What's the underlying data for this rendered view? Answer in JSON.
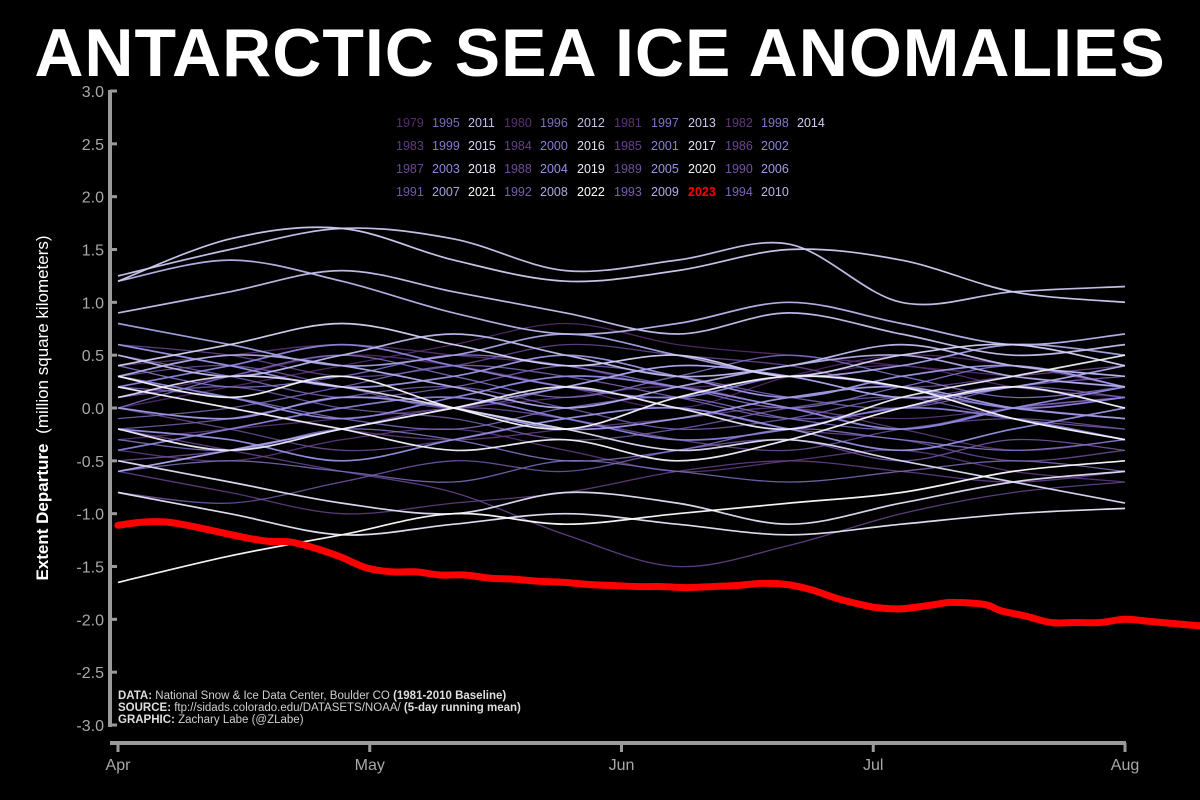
{
  "title": "ANTARCTIC SEA ICE ANOMALIES",
  "credits": {
    "data_label": "DATA:",
    "data_text": "National Snow & Ice Data Center, Boulder CO",
    "data_bold": "(1981-2010 Baseline)",
    "source_label": "SOURCE:",
    "source_text": "ftp://sidads.colorado.edu/DATASETS/NOAA/",
    "source_bold": "(5-day running mean)",
    "graphic_label": "GRAPHIC:",
    "graphic_text": "Zachary Labe (@ZLabe)"
  },
  "colors": {
    "background": "#000000",
    "axis": "#9a9a9a",
    "highlight": "#ff0000",
    "old_years": "#5a2a6e",
    "mid_years": "#8e87e0",
    "recent_years": "#ffffff"
  },
  "chart_data": {
    "type": "line",
    "title": "ANTARCTIC SEA ICE ANOMALIES",
    "ylabel_bold": "Extent Departure",
    "ylabel_rest": "(million square kilometers)",
    "xlabel": "",
    "x_ticks": [
      "Apr",
      "May",
      "Jun",
      "Jul",
      "Aug"
    ],
    "y_ticks": [
      "3.0",
      "2.5",
      "2.0",
      "1.5",
      "1.0",
      "0.5",
      "0.0",
      "-0.5",
      "-1.0",
      "-1.5",
      "-2.0",
      "-2.5",
      "-3.0"
    ],
    "ylim": [
      -3.0,
      3.0
    ],
    "x_range_days": [
      0,
      122
    ],
    "grid": false,
    "legend_position": "top-center",
    "legend_years": [
      "1979",
      "1983",
      "1987",
      "1991",
      "1995",
      "1999",
      "2003",
      "2007",
      "2011",
      "2015",
      "2018",
      "2021",
      "1980",
      "1984",
      "1988",
      "1992",
      "1996",
      "2000",
      "2004",
      "2008",
      "2012",
      "2016",
      "2019",
      "2022",
      "1981",
      "1985",
      "1989",
      "1993",
      "1997",
      "2001",
      "2005",
      "2009",
      "2013",
      "2017",
      "2020",
      "2023",
      "1982",
      "1986",
      "1990",
      "1994",
      "1998",
      "2002",
      "2006",
      "2010",
      "2014"
    ],
    "highlight_year": "2023",
    "highlight_label": "2023",
    "highlight_series": {
      "name": "2023",
      "x": [
        0,
        3,
        6,
        9,
        12,
        15,
        18,
        21,
        24,
        27,
        30,
        33,
        36,
        39,
        42,
        45,
        48,
        51,
        54,
        57,
        60,
        63,
        66,
        69,
        72,
        75,
        78,
        81,
        84,
        87,
        90,
        92,
        95,
        99,
        101,
        105,
        107,
        110,
        113,
        116,
        119,
        122,
        125,
        128,
        131,
        134
      ],
      "y": [
        -1.11,
        -1.08,
        -1.08,
        -1.12,
        -1.17,
        -1.22,
        -1.26,
        -1.27,
        -1.33,
        -1.41,
        -1.51,
        -1.55,
        -1.55,
        -1.58,
        -1.58,
        -1.61,
        -1.62,
        -1.64,
        -1.65,
        -1.67,
        -1.68,
        -1.69,
        -1.69,
        -1.7,
        -1.69,
        -1.68,
        -1.66,
        -1.67,
        -1.72,
        -1.8,
        -1.86,
        -1.89,
        -1.9,
        -1.86,
        -1.84,
        -1.86,
        -1.92,
        -1.97,
        -2.03,
        -2.03,
        -2.03,
        -2.0,
        -2.02,
        -2.04,
        -2.06,
        -2.05
      ]
    },
    "other_years": [
      {
        "name": "1979",
        "y": [
          0.1,
          0.3,
          0.5,
          0.4,
          0.2,
          0.0,
          0.3,
          0.5,
          0.4,
          0.2
        ]
      },
      {
        "name": "1980",
        "y": [
          0.0,
          0.2,
          0.4,
          0.6,
          0.8,
          0.6,
          0.5,
          0.4,
          0.3,
          0.2
        ]
      },
      {
        "name": "1981",
        "y": [
          0.4,
          0.5,
          0.6,
          0.5,
          0.4,
          0.2,
          0.3,
          0.4,
          0.2,
          0.1
        ]
      },
      {
        "name": "1982",
        "y": [
          -0.3,
          -0.2,
          -0.1,
          0.0,
          0.1,
          0.2,
          0.0,
          -0.1,
          0.0,
          0.1
        ]
      },
      {
        "name": "1983",
        "y": [
          -0.4,
          -0.5,
          -0.3,
          -0.2,
          -0.4,
          -0.6,
          -0.5,
          -0.4,
          -0.6,
          -0.7
        ]
      },
      {
        "name": "1984",
        "y": [
          0.2,
          0.0,
          -0.2,
          -0.3,
          -0.2,
          -0.1,
          0.0,
          -0.2,
          -0.4,
          -0.3
        ]
      },
      {
        "name": "1985",
        "y": [
          -0.6,
          -0.8,
          -1.0,
          -0.9,
          -0.8,
          -0.6,
          -0.5,
          -0.6,
          -0.7,
          -0.6
        ]
      },
      {
        "name": "1986",
        "y": [
          -0.2,
          -0.4,
          -0.6,
          -0.8,
          -1.2,
          -1.5,
          -1.3,
          -1.0,
          -0.8,
          -0.7
        ]
      },
      {
        "name": "1987",
        "y": [
          0.6,
          0.5,
          0.3,
          0.4,
          0.6,
          0.5,
          0.4,
          0.2,
          0.3,
          0.4
        ]
      },
      {
        "name": "1988",
        "y": [
          0.0,
          -0.2,
          -0.4,
          -0.3,
          -0.1,
          0.0,
          -0.2,
          -0.3,
          -0.5,
          -0.4
        ]
      },
      {
        "name": "1989",
        "y": [
          -0.5,
          -0.4,
          -0.2,
          0.0,
          -0.1,
          -0.3,
          -0.4,
          -0.2,
          -0.1,
          -0.2
        ]
      },
      {
        "name": "1990",
        "y": [
          0.3,
          0.4,
          0.2,
          0.0,
          0.2,
          0.4,
          0.3,
          0.1,
          0.2,
          0.0
        ]
      },
      {
        "name": "1991",
        "y": [
          -0.8,
          -0.9,
          -0.7,
          -0.5,
          -0.6,
          -0.4,
          -0.3,
          -0.5,
          -0.3,
          -0.4
        ]
      },
      {
        "name": "1992",
        "y": [
          0.1,
          0.2,
          0.0,
          -0.1,
          -0.3,
          -0.2,
          0.0,
          0.1,
          -0.1,
          -0.2
        ]
      },
      {
        "name": "1993",
        "y": [
          -0.2,
          -0.1,
          0.1,
          0.2,
          0.0,
          -0.2,
          -0.1,
          0.1,
          0.0,
          -0.1
        ]
      },
      {
        "name": "1994",
        "y": [
          0.5,
          0.3,
          0.1,
          0.2,
          0.4,
          0.3,
          0.1,
          0.0,
          0.2,
          0.3
        ]
      },
      {
        "name": "1995",
        "y": [
          -0.1,
          0.0,
          0.2,
          0.4,
          0.3,
          0.1,
          -0.1,
          0.0,
          0.2,
          0.1
        ]
      },
      {
        "name": "1996",
        "y": [
          -0.6,
          -0.5,
          -0.6,
          -0.7,
          -0.5,
          -0.6,
          -0.7,
          -0.6,
          -0.5,
          -0.6
        ]
      },
      {
        "name": "1997",
        "y": [
          0.2,
          0.1,
          -0.1,
          -0.2,
          0.0,
          0.1,
          -0.1,
          -0.2,
          0.0,
          0.1
        ]
      },
      {
        "name": "1998",
        "y": [
          0.0,
          0.3,
          0.5,
          0.3,
          0.1,
          0.3,
          0.5,
          0.3,
          0.1,
          0.2
        ]
      },
      {
        "name": "1999",
        "y": [
          -0.3,
          -0.4,
          -0.2,
          -0.3,
          -0.5,
          -0.4,
          -0.2,
          -0.3,
          -0.4,
          -0.3
        ]
      },
      {
        "name": "2000",
        "y": [
          0.4,
          0.2,
          0.3,
          0.5,
          0.4,
          0.2,
          0.0,
          0.2,
          0.4,
          0.2
        ]
      },
      {
        "name": "2001",
        "y": [
          -0.4,
          -0.2,
          0.0,
          0.1,
          -0.1,
          -0.3,
          -0.2,
          0.0,
          -0.1,
          -0.3
        ]
      },
      {
        "name": "2002",
        "y": [
          0.2,
          0.4,
          0.6,
          0.4,
          0.2,
          0.1,
          0.3,
          0.2,
          0.0,
          0.1
        ]
      },
      {
        "name": "2003",
        "y": [
          0.3,
          0.1,
          -0.1,
          0.1,
          0.3,
          0.2,
          0.0,
          -0.2,
          0.0,
          0.2
        ]
      },
      {
        "name": "2004",
        "y": [
          -0.2,
          -0.3,
          -0.5,
          -0.3,
          -0.1,
          0.0,
          -0.2,
          -0.4,
          -0.2,
          0.0
        ]
      },
      {
        "name": "2005",
        "y": [
          0.6,
          0.4,
          0.2,
          0.3,
          0.5,
          0.3,
          0.1,
          0.3,
          0.4,
          0.2
        ]
      },
      {
        "name": "2006",
        "y": [
          0.0,
          -0.1,
          0.1,
          0.0,
          -0.2,
          -0.1,
          0.1,
          0.2,
          0.0,
          -0.1
        ]
      },
      {
        "name": "2007",
        "y": [
          0.8,
          0.6,
          0.4,
          0.5,
          0.7,
          0.5,
          0.3,
          0.4,
          0.6,
          0.5
        ]
      },
      {
        "name": "2008",
        "y": [
          -0.6,
          -0.4,
          -0.2,
          0.0,
          0.2,
          0.4,
          0.3,
          0.1,
          0.2,
          0.4
        ]
      },
      {
        "name": "2009",
        "y": [
          0.3,
          0.5,
          0.4,
          0.2,
          0.0,
          0.2,
          0.4,
          0.5,
          0.3,
          0.2
        ]
      },
      {
        "name": "2010",
        "y": [
          1.2,
          1.4,
          1.2,
          0.9,
          0.7,
          0.8,
          1.0,
          0.8,
          0.6,
          0.7
        ]
      },
      {
        "name": "2011",
        "y": [
          0.5,
          0.3,
          0.5,
          0.7,
          0.5,
          0.3,
          0.4,
          0.6,
          0.4,
          0.3
        ]
      },
      {
        "name": "2012",
        "y": [
          0.9,
          1.1,
          1.3,
          1.1,
          0.9,
          0.7,
          0.9,
          0.7,
          0.5,
          0.6
        ]
      },
      {
        "name": "2013",
        "y": [
          1.25,
          1.5,
          1.7,
          1.6,
          1.3,
          1.4,
          1.55,
          1.0,
          1.1,
          1.15
        ]
      },
      {
        "name": "2014",
        "y": [
          1.2,
          1.6,
          1.7,
          1.4,
          1.2,
          1.3,
          1.5,
          1.4,
          1.1,
          1.0
        ]
      },
      {
        "name": "2015",
        "y": [
          0.4,
          0.6,
          0.8,
          0.6,
          0.4,
          0.5,
          0.3,
          0.5,
          0.6,
          0.4
        ]
      },
      {
        "name": "2016",
        "y": [
          0.1,
          0.3,
          0.2,
          0.0,
          -0.2,
          -0.4,
          -0.3,
          -0.5,
          -0.7,
          -0.9
        ]
      },
      {
        "name": "2017",
        "y": [
          -0.5,
          -0.7,
          -0.9,
          -1.0,
          -0.8,
          -0.9,
          -1.1,
          -0.9,
          -0.7,
          -0.6
        ]
      },
      {
        "name": "2018",
        "y": [
          -0.8,
          -1.0,
          -1.2,
          -1.1,
          -1.0,
          -1.1,
          -1.2,
          -1.1,
          -1.0,
          -0.95
        ]
      },
      {
        "name": "2019",
        "y": [
          -0.2,
          -0.4,
          -0.2,
          0.0,
          0.2,
          0.0,
          -0.2,
          0.1,
          0.3,
          0.5
        ]
      },
      {
        "name": "2020",
        "y": [
          0.2,
          0.0,
          -0.2,
          -0.4,
          -0.3,
          -0.5,
          -0.3,
          0.0,
          0.2,
          0.0
        ]
      },
      {
        "name": "2021",
        "y": [
          0.3,
          0.1,
          0.3,
          0.0,
          -0.2,
          0.1,
          0.3,
          0.2,
          -0.1,
          -0.3
        ]
      },
      {
        "name": "2022",
        "y": [
          -1.65,
          -1.4,
          -1.2,
          -1.0,
          -1.1,
          -1.0,
          -0.9,
          -0.8,
          -0.6,
          -0.5
        ]
      }
    ]
  }
}
